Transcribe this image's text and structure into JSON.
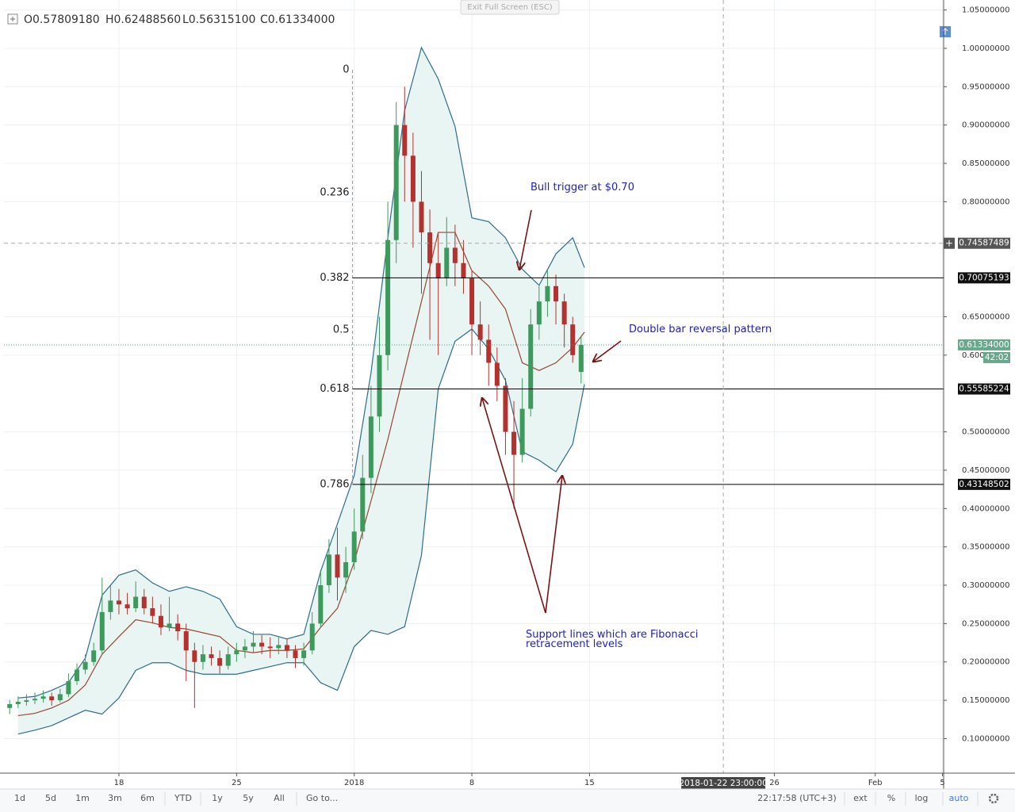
{
  "header": {
    "ohlc": [
      "O0.57809180",
      "H0.62488560",
      "L0.56315100",
      "C0.61334000"
    ],
    "exit_button": "Exit Full Screen (ESC)"
  },
  "chart_data": {
    "type": "candlestick",
    "up_color": "#3d9a5c",
    "down_color": "#b3322f",
    "band_color": "#2f6d8c",
    "band_fill": "#e8f5f3",
    "basis_color": "#9a4530",
    "grid": true,
    "ylim": [
      0.055,
      1.063
    ],
    "yticks": [
      {
        "value": 0.1,
        "label": "0.10000000"
      },
      {
        "value": 0.15,
        "label": "0.15000000"
      },
      {
        "value": 0.2,
        "label": "0.20000000"
      },
      {
        "value": 0.25,
        "label": "0.25000000"
      },
      {
        "value": 0.3,
        "label": "0.30000000"
      },
      {
        "value": 0.35,
        "label": "0.35000000"
      },
      {
        "value": 0.4,
        "label": "0.40000000"
      },
      {
        "value": 0.45,
        "label": "0.45000000"
      },
      {
        "value": 0.5,
        "label": "0.50000000"
      },
      {
        "value": 0.6,
        "label": "0.600"
      },
      {
        "value": 0.65,
        "label": "0.65000000"
      },
      {
        "value": 0.8,
        "label": "0.80000000"
      },
      {
        "value": 0.85,
        "label": "0.85000000"
      },
      {
        "value": 0.9,
        "label": "0.90000000"
      },
      {
        "value": 0.95,
        "label": "0.95000000"
      },
      {
        "value": 1,
        "label": "1.00000000"
      },
      {
        "value": 1.05,
        "label": "1.05000000"
      }
    ],
    "xlim": [
      11.16,
      67.07
    ],
    "xticks": [
      18,
      25,
      {
        "value": 32,
        "label": "2018"
      },
      {
        "value": 39,
        "label": "8"
      },
      {
        "value": 46,
        "label": "15"
      },
      {
        "value": 57,
        "label": "26"
      },
      {
        "value": 63,
        "label": "Feb"
      },
      {
        "value": 67,
        "label": "5"
      }
    ],
    "x": [
      11.5,
      12,
      12.5,
      13,
      13.5,
      14,
      14.5,
      15,
      15.5,
      16,
      16.5,
      17,
      17.5,
      18,
      18.5,
      19,
      19.5,
      20,
      20.5,
      21,
      21.5,
      22,
      22.5,
      23,
      23.5,
      24,
      24.5,
      25,
      25.5,
      26,
      26.5,
      27,
      27.5,
      28,
      28.5,
      29,
      29.5,
      30,
      30.5,
      31,
      31.5,
      32,
      32.5,
      33,
      33.5,
      34,
      34.5,
      35,
      35.5,
      36,
      36.5,
      37,
      37.5,
      38,
      38.5,
      39,
      39.5,
      40,
      40.5,
      41,
      41.5,
      42,
      42.5,
      43,
      43.5,
      44,
      44.5,
      45,
      45.5
    ],
    "ohlc": [
      [
        0.14,
        0.15,
        0.132,
        0.145
      ],
      [
        0.145,
        0.155,
        0.14,
        0.148
      ],
      [
        0.148,
        0.158,
        0.143,
        0.15
      ],
      [
        0.15,
        0.16,
        0.145,
        0.152
      ],
      [
        0.152,
        0.163,
        0.147,
        0.155
      ],
      [
        0.155,
        0.16,
        0.143,
        0.15
      ],
      [
        0.15,
        0.165,
        0.147,
        0.158
      ],
      [
        0.158,
        0.185,
        0.154,
        0.175
      ],
      [
        0.175,
        0.198,
        0.17,
        0.19
      ],
      [
        0.19,
        0.21,
        0.184,
        0.2
      ],
      [
        0.2,
        0.225,
        0.195,
        0.215
      ],
      [
        0.215,
        0.31,
        0.21,
        0.265
      ],
      [
        0.265,
        0.3,
        0.255,
        0.28
      ],
      [
        0.28,
        0.295,
        0.262,
        0.275
      ],
      [
        0.275,
        0.29,
        0.262,
        0.27
      ],
      [
        0.27,
        0.305,
        0.265,
        0.285
      ],
      [
        0.285,
        0.295,
        0.262,
        0.27
      ],
      [
        0.27,
        0.285,
        0.25,
        0.26
      ],
      [
        0.26,
        0.275,
        0.235,
        0.245
      ],
      [
        0.245,
        0.285,
        0.24,
        0.25
      ],
      [
        0.25,
        0.262,
        0.228,
        0.24
      ],
      [
        0.24,
        0.25,
        0.175,
        0.215
      ],
      [
        0.215,
        0.225,
        0.14,
        0.2
      ],
      [
        0.2,
        0.222,
        0.19,
        0.21
      ],
      [
        0.21,
        0.22,
        0.195,
        0.205
      ],
      [
        0.205,
        0.215,
        0.185,
        0.195
      ],
      [
        0.195,
        0.22,
        0.19,
        0.21
      ],
      [
        0.21,
        0.225,
        0.2,
        0.215
      ],
      [
        0.215,
        0.23,
        0.205,
        0.22
      ],
      [
        0.22,
        0.24,
        0.212,
        0.225
      ],
      [
        0.225,
        0.235,
        0.21,
        0.22
      ],
      [
        0.22,
        0.232,
        0.205,
        0.218
      ],
      [
        0.218,
        0.232,
        0.21,
        0.222
      ],
      [
        0.222,
        0.23,
        0.205,
        0.215
      ],
      [
        0.215,
        0.222,
        0.192,
        0.205
      ],
      [
        0.205,
        0.225,
        0.195,
        0.215
      ],
      [
        0.215,
        0.265,
        0.21,
        0.25
      ],
      [
        0.25,
        0.32,
        0.245,
        0.3
      ],
      [
        0.3,
        0.36,
        0.29,
        0.34
      ],
      [
        0.34,
        0.375,
        0.28,
        0.31
      ],
      [
        0.31,
        0.35,
        0.29,
        0.33
      ],
      [
        0.33,
        0.4,
        0.32,
        0.37
      ],
      [
        0.37,
        0.47,
        0.36,
        0.44
      ],
      [
        0.44,
        0.56,
        0.42,
        0.52
      ],
      [
        0.52,
        0.65,
        0.5,
        0.6
      ],
      [
        0.6,
        0.8,
        0.58,
        0.75
      ],
      [
        0.75,
        0.93,
        0.72,
        0.9
      ],
      [
        0.9,
        0.95,
        0.8,
        0.86
      ],
      [
        0.86,
        0.89,
        0.74,
        0.8
      ],
      [
        0.8,
        0.84,
        0.68,
        0.76
      ],
      [
        0.76,
        0.79,
        0.62,
        0.72
      ],
      [
        0.72,
        0.76,
        0.6,
        0.7
      ],
      [
        0.7,
        0.78,
        0.69,
        0.74
      ],
      [
        0.74,
        0.77,
        0.69,
        0.72
      ],
      [
        0.72,
        0.75,
        0.68,
        0.7
      ],
      [
        0.7,
        0.71,
        0.6,
        0.64
      ],
      [
        0.64,
        0.67,
        0.6,
        0.62
      ],
      [
        0.62,
        0.64,
        0.56,
        0.59
      ],
      [
        0.59,
        0.61,
        0.54,
        0.56
      ],
      [
        0.56,
        0.57,
        0.47,
        0.5
      ],
      [
        0.5,
        0.54,
        0.4,
        0.47
      ],
      [
        0.47,
        0.57,
        0.46,
        0.53
      ],
      [
        0.53,
        0.66,
        0.52,
        0.64
      ],
      [
        0.64,
        0.69,
        0.62,
        0.67
      ],
      [
        0.67,
        0.71,
        0.65,
        0.69
      ],
      [
        0.69,
        0.705,
        0.64,
        0.67
      ],
      [
        0.67,
        0.68,
        0.61,
        0.64
      ],
      [
        0.64,
        0.65,
        0.59,
        0.6
      ],
      [
        0.5780918,
        0.6248856,
        0.563151,
        0.61334
      ]
    ],
    "bands": {
      "x": [
        12,
        13,
        14,
        15,
        16,
        17,
        18,
        19,
        20,
        21,
        22,
        23,
        24,
        25,
        26,
        27,
        28,
        29,
        30,
        31,
        32,
        33,
        34,
        35,
        36,
        37,
        38,
        39,
        40,
        41,
        42,
        43,
        44,
        45,
        45.7
      ],
      "upper": [
        0.153,
        0.155,
        0.163,
        0.173,
        0.205,
        0.287,
        0.313,
        0.32,
        0.303,
        0.292,
        0.298,
        0.292,
        0.282,
        0.246,
        0.236,
        0.236,
        0.23,
        0.236,
        0.318,
        0.38,
        0.443,
        0.577,
        0.753,
        0.919,
        1.001,
        0.96,
        0.898,
        0.779,
        0.774,
        0.753,
        0.712,
        0.691,
        0.732,
        0.753,
        0.714
      ],
      "middle": [
        0.13,
        0.133,
        0.14,
        0.15,
        0.17,
        0.21,
        0.233,
        0.255,
        0.251,
        0.245,
        0.243,
        0.238,
        0.233,
        0.215,
        0.212,
        0.215,
        0.215,
        0.217,
        0.245,
        0.27,
        0.33,
        0.41,
        0.49,
        0.58,
        0.67,
        0.76,
        0.76,
        0.71,
        0.69,
        0.66,
        0.59,
        0.58,
        0.59,
        0.61,
        0.63
      ],
      "lower": [
        0.106,
        0.111,
        0.117,
        0.127,
        0.137,
        0.132,
        0.153,
        0.189,
        0.199,
        0.199,
        0.189,
        0.184,
        0.184,
        0.184,
        0.189,
        0.194,
        0.199,
        0.199,
        0.173,
        0.163,
        0.22,
        0.241,
        0.236,
        0.246,
        0.339,
        0.556,
        0.618,
        0.634,
        0.608,
        0.567,
        0.474,
        0.463,
        0.448,
        0.484,
        0.562
      ]
    },
    "fib": {
      "x": 31.9,
      "levels": [
        0,
        0.236,
        0.382,
        0.5,
        0.618,
        0.786
      ],
      "prices": [
        0.972,
        0.812,
        0.70075193,
        0.633,
        0.55585224,
        0.43148502
      ]
    },
    "hlines": [
      0.70075193,
      0.55585224,
      0.43148502
    ],
    "last_price": {
      "value": 0.61334,
      "label": "0.61334000"
    },
    "countdown": "42:02",
    "crosshair": {
      "x": {
        "value": 53.96,
        "label": "2018-01-22 23:00:00"
      },
      "y": 0.74587489
    }
  },
  "annotations": [
    "Bull trigger at $0.70",
    "Double bar reversal pattern",
    "Support lines which are Fibonacci",
    "retracement levels"
  ],
  "toolbar": {
    "ranges": [
      "1d",
      "5d",
      "1m",
      "3m",
      "6m",
      "YTD",
      "1y",
      "5y",
      "All"
    ],
    "goto": "Go to...",
    "clock": "22:17:58 (UTC+3)",
    "options": [
      "ext",
      "%",
      "log",
      "auto"
    ]
  }
}
